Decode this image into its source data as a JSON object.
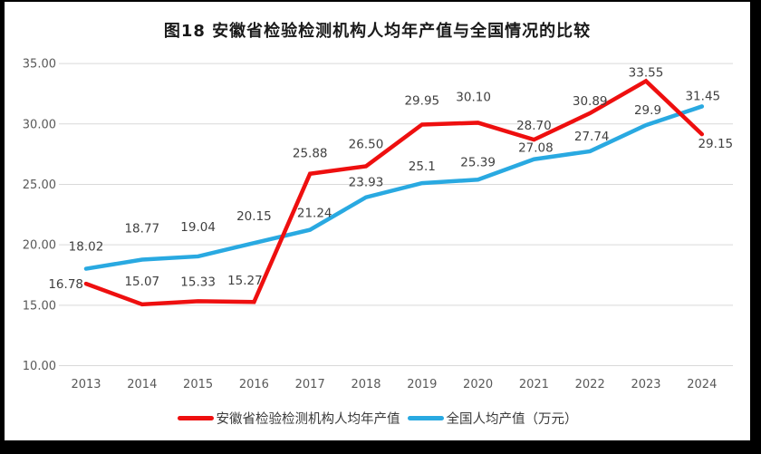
{
  "chart_data": {
    "type": "line",
    "title": "图18 安徽省检验检测机构人均年产值与全国情况的比较",
    "categories": [
      "2013",
      "2014",
      "2015",
      "2016",
      "2017",
      "2018",
      "2019",
      "2020",
      "2021",
      "2022",
      "2023",
      "2024"
    ],
    "series": [
      {
        "name": "安徽省检验检测机构人均年产值",
        "color": "#EE0F0F",
        "values": [
          16.78,
          15.07,
          15.33,
          15.27,
          25.88,
          26.5,
          29.95,
          30.1,
          28.7,
          30.89,
          33.55,
          29.15
        ],
        "labels": [
          "16.78",
          "15.07",
          "15.33",
          "15.27",
          "25.88",
          "26.50",
          "29.95",
          "30.10",
          "28.70",
          "30.89",
          "33.55",
          "29.15"
        ],
        "label_dx": [
          -3,
          0,
          0,
          -10,
          0,
          0,
          0,
          -5,
          0,
          0,
          0,
          15
        ],
        "label_dy": [
          5,
          -21,
          -17,
          -19,
          -18,
          -20,
          -22,
          -24,
          -11,
          -9,
          -5,
          15
        ],
        "label_anchor": [
          "end",
          "middle",
          "middle",
          "middle",
          "middle",
          "middle",
          "middle",
          "middle",
          "middle",
          "middle",
          "middle",
          "middle"
        ]
      },
      {
        "name": "全国人均产值（万元）",
        "color": "#29A9E1",
        "values": [
          18.02,
          18.77,
          19.04,
          20.15,
          21.24,
          23.93,
          25.1,
          25.39,
          27.08,
          27.74,
          29.9,
          31.45
        ],
        "labels": [
          "18.02",
          "18.77",
          "19.04",
          "20.15",
          "21.24",
          "23.93",
          "25.1",
          "25.39",
          "27.08",
          "27.74",
          "29.9",
          "31.45"
        ],
        "label_dx": [
          0,
          0,
          0,
          0,
          5,
          0,
          0,
          0,
          2,
          2,
          2,
          1
        ],
        "label_dy": [
          -20,
          -30,
          -28,
          -25,
          -14,
          -12,
          -14,
          -15,
          -8,
          -12,
          -12,
          -7
        ]
      }
    ],
    "xlabel": "",
    "ylabel": "",
    "ylim": [
      10,
      35
    ],
    "ytick_step": 5,
    "ytick_labels": [
      "10.00",
      "15.00",
      "20.00",
      "25.00",
      "30.00",
      "35.00"
    ],
    "grid": "horizontal",
    "legend_position": "bottom",
    "gridline_color": "#D9D9D9",
    "axis_label_color": "#595959",
    "data_label_color": "#404040",
    "line_width": 4.5
  }
}
